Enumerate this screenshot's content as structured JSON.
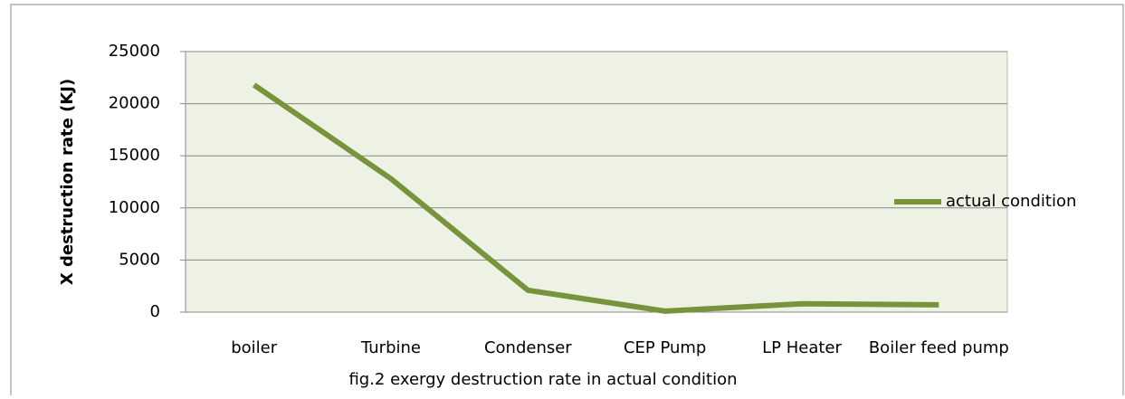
{
  "chart_data": {
    "type": "line",
    "caption": "fig.2 exergy destruction rate in actual condition",
    "y_label": "X destruction rate (KJ)",
    "categories": [
      "boiler",
      "Turbine",
      "Condenser",
      "CEP Pump",
      "LP Heater",
      "Boiler feed pump"
    ],
    "series": [
      {
        "name": "actual condition",
        "color": "#77933c",
        "values": [
          21800,
          12800,
          2100,
          100,
          800,
          700
        ]
      }
    ],
    "ylim": [
      0,
      25000
    ],
    "yticks": [
      0,
      5000,
      10000,
      15000,
      20000,
      25000
    ],
    "grid": true,
    "legend": "right",
    "plot_background": "#eef2e4"
  }
}
